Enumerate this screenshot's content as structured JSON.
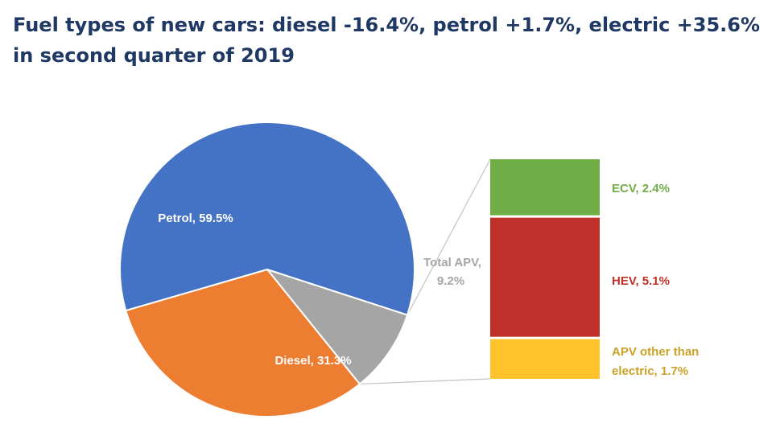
{
  "chart_data": {
    "type": "pie",
    "title": "Fuel types of new cars: diesel -16.4%, petrol +1.7%, electric +35.6% in second quarter of 2019",
    "slices": [
      {
        "name": "Petrol",
        "value": 59.5,
        "label": "Petrol, 59.5%",
        "color": "#4472c4"
      },
      {
        "name": "Diesel",
        "value": 31.3,
        "label": "Diesel, 31.3%",
        "color": "#ed7d31"
      },
      {
        "name": "Total APV",
        "value": 9.2,
        "label_line1": "Total APV,",
        "label_line2": "9.2%",
        "color": "#a5a5a5"
      }
    ],
    "breakdown": {
      "of": "Total APV",
      "segments": [
        {
          "name": "ECV",
          "value": 2.4,
          "label": "ECV, 2.4%",
          "color": "#70ad47",
          "label_color": "#70ad47"
        },
        {
          "name": "HEV",
          "value": 5.1,
          "label": "HEV, 5.1%",
          "color": "#c0302a",
          "label_color": "#c0302a"
        },
        {
          "name": "APV other than electric",
          "value": 1.7,
          "label_line1": "APV other than",
          "label_line2": "electric, 1.7%",
          "color": "#ffc32b",
          "label_color": "#c9a227"
        }
      ]
    }
  }
}
